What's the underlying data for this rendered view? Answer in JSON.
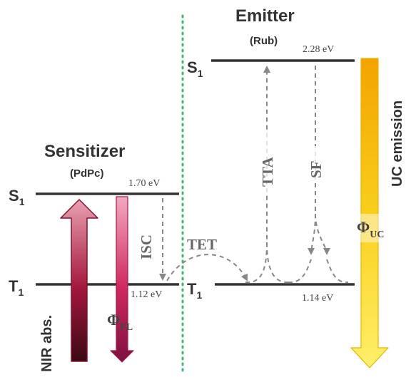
{
  "sensitizer": {
    "title": "Sensitizer",
    "subtitle": "(PdPc)",
    "s1_energy": "1.70 eV",
    "t1_energy": "1.12 eV",
    "s1_label": "S",
    "t1_label": "T",
    "state_subscript": "1"
  },
  "emitter": {
    "title": "Emitter",
    "subtitle": "(Rub)",
    "s1_energy": "2.28 eV",
    "t1_energy": "1.14 eV",
    "s1_label": "S",
    "t1_label": "T",
    "state_subscript": "1"
  },
  "processes": {
    "nir_abs": "NIR abs.",
    "isc": "ISC",
    "tet": "TET",
    "tta": "TTA",
    "sf": "SF",
    "uc_emission": "UC emission",
    "phi_symbol": "Φ",
    "phi_fl_sub": "FL",
    "phi_uc_sub": "UC"
  },
  "colors": {
    "level_line": "#333333",
    "dashed_arrow": "#888888",
    "divider": "#3cb371",
    "nir_arrow": "#a0123a",
    "fl_arrow": "#d81b60",
    "uc_arrow": "#f5b800"
  }
}
